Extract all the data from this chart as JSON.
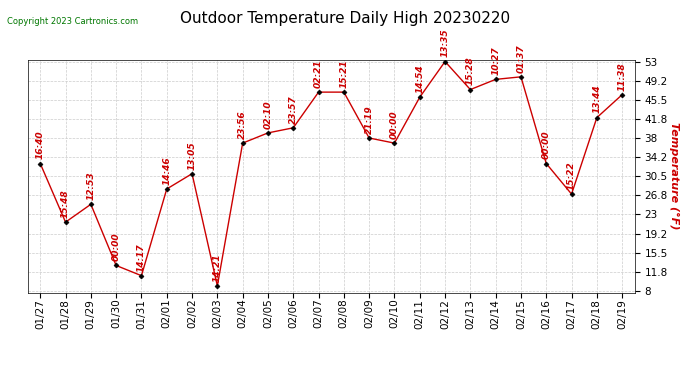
{
  "title": "Outdoor Temperature Daily High 20230220",
  "ylabel": "Temperature (°F)",
  "copyright": "Copyright 2023 Cartronics.com",
  "background_color": "#ffffff",
  "plot_bg_color": "#ffffff",
  "grid_color": "#cccccc",
  "line_color": "#cc0000",
  "marker_color": "#000000",
  "label_color": "#cc0000",
  "copyright_color": "#007700",
  "dates": [
    "01/27",
    "01/28",
    "01/29",
    "01/30",
    "01/31",
    "02/01",
    "02/02",
    "02/03",
    "02/04",
    "02/05",
    "02/06",
    "02/07",
    "02/08",
    "02/09",
    "02/10",
    "02/11",
    "02/12",
    "02/13",
    "02/14",
    "02/15",
    "02/16",
    "02/17",
    "02/18",
    "02/19"
  ],
  "temperatures": [
    33.0,
    21.5,
    25.0,
    13.0,
    11.0,
    28.0,
    31.0,
    9.0,
    37.0,
    39.0,
    40.0,
    47.0,
    47.0,
    38.0,
    37.0,
    46.0,
    53.0,
    47.5,
    49.5,
    50.0,
    33.0,
    27.0,
    42.0,
    46.5
  ],
  "time_labels": [
    "16:40",
    "15:48",
    "12:53",
    "00:00",
    "14:17",
    "14:46",
    "13:05",
    "14:21",
    "23:56",
    "02:10",
    "23:57",
    "02:21",
    "15:21",
    "21:19",
    "00:00",
    "14:54",
    "13:35",
    "15:28",
    "10:27",
    "01:37",
    "00:00",
    "15:22",
    "13:44",
    "11:38"
  ],
  "ylim": [
    8.0,
    53.0
  ],
  "yticks": [
    8.0,
    11.8,
    15.5,
    19.2,
    23.0,
    26.8,
    30.5,
    34.2,
    38.0,
    41.8,
    45.5,
    49.2,
    53.0
  ],
  "title_fontsize": 11,
  "label_fontsize": 8,
  "tick_fontsize": 7.5,
  "anno_fontsize": 6.5
}
